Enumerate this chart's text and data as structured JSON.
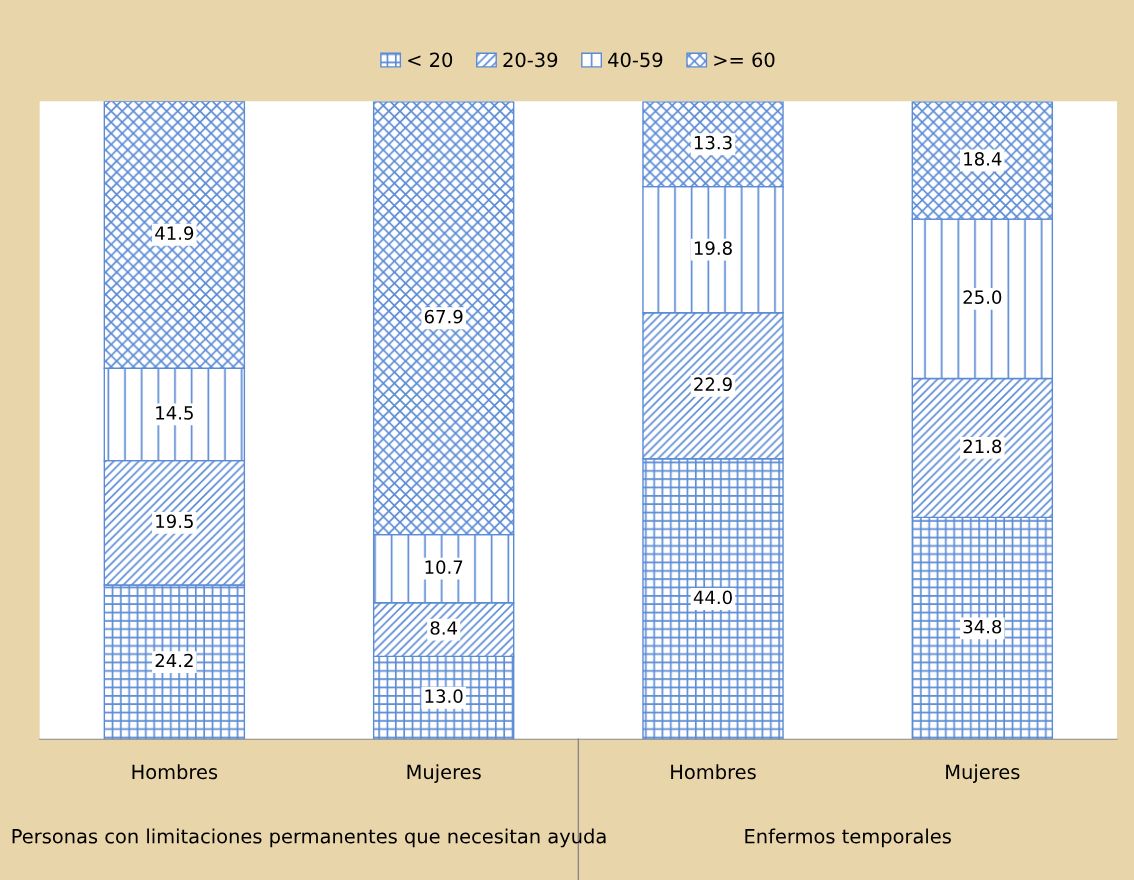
{
  "chart_data": {
    "type": "bar",
    "stacked": true,
    "legend": "top",
    "grid": false,
    "categories": [
      "Hombres",
      "Mujeres",
      "Hombres",
      "Mujeres"
    ],
    "series": [
      {
        "name": "< 20",
        "color": "#5b8bd5",
        "values": [
          24.2,
          13.0,
          44.0,
          34.8
        ],
        "value_labels": [
          "24.2",
          "13.0",
          "44.0",
          "34.8"
        ]
      },
      {
        "name": "20-39",
        "color": "#5b8bd5",
        "values": [
          19.5,
          8.4,
          22.9,
          21.8
        ],
        "value_labels": [
          "19.5",
          "8.4",
          "22.9",
          "21.8"
        ]
      },
      {
        "name": "40-59",
        "color": "#5b8bd5",
        "values": [
          14.5,
          10.7,
          19.8,
          25.0
        ],
        "value_labels": [
          "14.5",
          "10.7",
          "19.8",
          "25.0"
        ]
      },
      {
        "name": ">= 60",
        "color": "#5b8bd5",
        "values": [
          41.9,
          67.9,
          13.3,
          18.4
        ],
        "value_labels": [
          "41.9",
          "67.9",
          "13.3",
          "18.4"
        ]
      }
    ],
    "annotations": [
      "Personas con limitaciones permanentes que necesitan ayuda",
      "Enfermos temporales"
    ]
  }
}
